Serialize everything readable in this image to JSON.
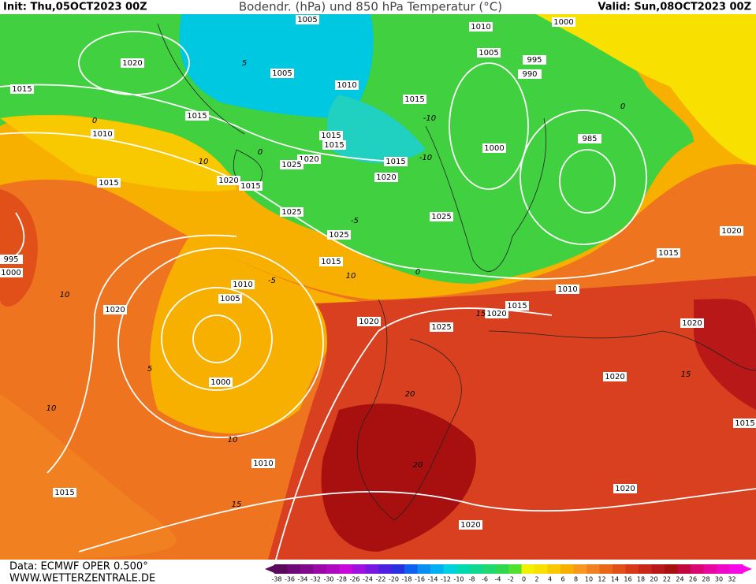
{
  "header": {
    "init": "Init: Thu,05OCT2023 00Z",
    "title": "Bodendr. (hPa) und 850 hPa Temperatur (°C)",
    "valid": "Valid: Sun,08OCT2023 00Z"
  },
  "footer": {
    "data": "Data: ECMWF OPER 0.500°",
    "site": "WWW.WETTERZENTRALE.DE"
  },
  "colorbar": {
    "labels": [
      -38,
      -36,
      -34,
      -32,
      -30,
      -28,
      -26,
      -24,
      -22,
      -20,
      -18,
      -16,
      -14,
      -12,
      -10,
      -8,
      -6,
      -4,
      -2,
      0,
      2,
      4,
      6,
      8,
      10,
      12,
      14,
      16,
      18,
      20,
      22,
      24,
      26,
      28,
      30,
      32
    ],
    "colors": [
      "#5a0a5a",
      "#6e0a78",
      "#82088c",
      "#9a08a8",
      "#b008c0",
      "#c808d8",
      "#a010e0",
      "#7818e0",
      "#5020e0",
      "#2830e0",
      "#1060f0",
      "#0890f0",
      "#00b0f0",
      "#00d0e0",
      "#00d8b0",
      "#10d890",
      "#20d870",
      "#30d850",
      "#50e030",
      "#f0f000",
      "#f8e000",
      "#f8c800",
      "#f8b000",
      "#f89820",
      "#f08020",
      "#e86818",
      "#e05018",
      "#d83818",
      "#c82818",
      "#b81818",
      "#a81010",
      "#c00840",
      "#d80870",
      "#e808a0",
      "#f008c8",
      "#f808e8"
    ]
  },
  "isobar_labels": [
    "1005",
    "1010",
    "1000",
    "1020",
    "1005",
    "995",
    "990",
    "1015",
    "1005",
    "1010",
    "1015",
    "1015",
    "1010",
    "1015",
    "1015",
    "1000",
    "985",
    "1020",
    "1025",
    "1015",
    "1020",
    "1015",
    "1015",
    "1020",
    "1025",
    "1025",
    "1025",
    "995",
    "1000",
    "1015",
    "1020",
    "1015",
    "1010",
    "1010",
    "1005",
    "1020",
    "1015",
    "1020",
    "1020",
    "1025",
    "1020",
    "1000",
    "1020",
    "1010",
    "1015",
    "1020",
    "1020",
    "1015"
  ],
  "temperature_labels": [
    "0",
    "0",
    "-5",
    "-10",
    "-10",
    "0",
    "5",
    "10",
    "10",
    "-5",
    "0",
    "5",
    "10",
    "10",
    "15",
    "15",
    "20",
    "20",
    "15",
    "10"
  ]
}
